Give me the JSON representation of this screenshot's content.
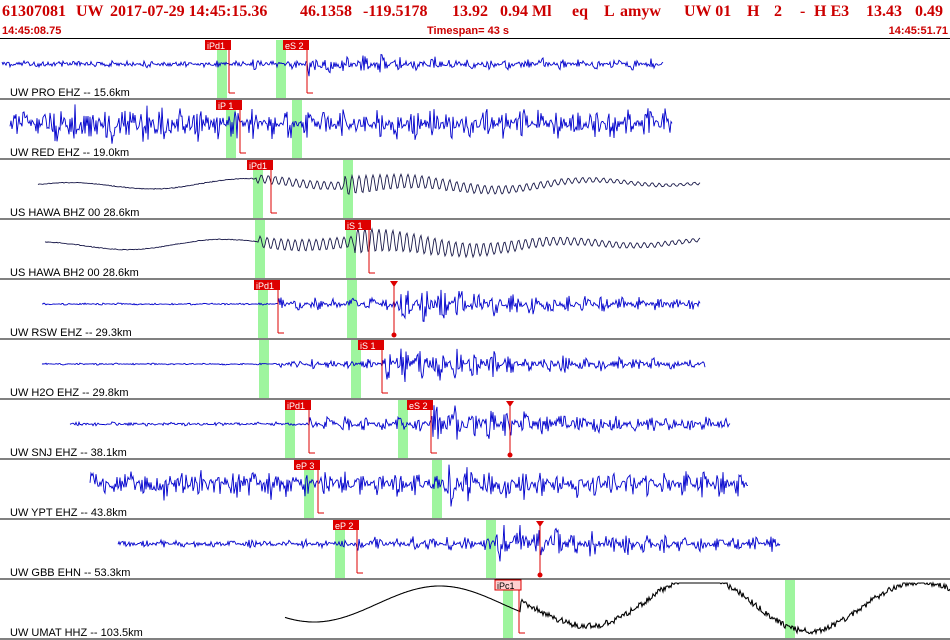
{
  "header": {
    "event_id": "61307081",
    "network": "UW",
    "datetime": "2017-07-29 14:45:15.36",
    "lat": "46.1358",
    "lon": "-119.5178",
    "depth": "13.92",
    "magnitude": "0.94 Ml",
    "etype": "eq",
    "flag1": "L",
    "user": "amyw",
    "source": "UW 01",
    "gtype": "H",
    "num": "2",
    "dash": "-",
    "qual": "H E3",
    "rms": "13.43",
    "err": "0.49"
  },
  "time_bar": {
    "start": "14:45:08.75",
    "timespan": "Timespan=  43 s",
    "end": "14:45:51.71"
  },
  "colors": {
    "header": "#cc0000",
    "trace_blue": "#0000cc",
    "trace_dark": "#1a1a4a",
    "trace_black": "#000000",
    "pick": "#dd0000",
    "band": "#9ef59e"
  },
  "traces": [
    {
      "label": "UW PRO EHZ -- 15.6km",
      "color": "trace_blue",
      "picks": [
        "iPd1",
        "eS 2"
      ]
    },
    {
      "label": "UW RED EHZ -- 19.0km",
      "color": "trace_blue",
      "picks": [
        "iP 1"
      ]
    },
    {
      "label": "US HAWA BHZ 00 28.6km",
      "color": "trace_dark",
      "picks": [
        "iPd1"
      ]
    },
    {
      "label": "US HAWA BH2 00 28.6km",
      "color": "trace_dark",
      "picks": [
        "iS 1"
      ]
    },
    {
      "label": "UW RSW EHZ -- 29.3km",
      "color": "trace_blue",
      "picks": [
        "iPd1"
      ]
    },
    {
      "label": "UW H2O EHZ -- 29.8km",
      "color": "trace_blue",
      "picks": [
        "iS 1"
      ]
    },
    {
      "label": "UW SNJ EHZ -- 38.1km",
      "color": "trace_blue",
      "picks": [
        "iPd1",
        "eS 2"
      ]
    },
    {
      "label": "UW YPT EHZ -- 43.8km",
      "color": "trace_blue",
      "picks": [
        "eP 3"
      ]
    },
    {
      "label": "UW GBB EHN -- 53.3km",
      "color": "trace_blue",
      "picks": [
        "eP 2"
      ]
    },
    {
      "label": "UW UMAT HHZ -- 103.5km",
      "color": "trace_black",
      "picks": [
        "iPc1"
      ]
    }
  ]
}
